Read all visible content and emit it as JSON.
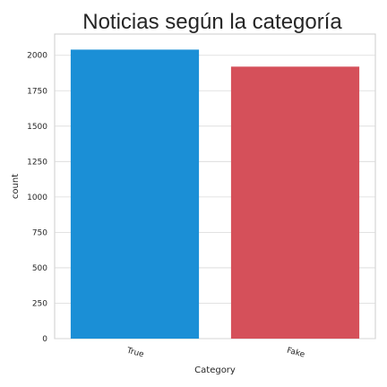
{
  "chart_data": {
    "type": "bar",
    "title": "Noticias según la categoría",
    "xlabel": "Category",
    "ylabel": "count",
    "categories": [
      "True",
      "Fake"
    ],
    "values": [
      2040,
      1920
    ],
    "colors": [
      "#1b8fd6",
      "#d5505a"
    ],
    "ylim": [
      0,
      2150
    ],
    "yticks": [
      0,
      250,
      500,
      750,
      1000,
      1250,
      1500,
      1750,
      2000
    ],
    "grid": true,
    "legend": "none"
  }
}
